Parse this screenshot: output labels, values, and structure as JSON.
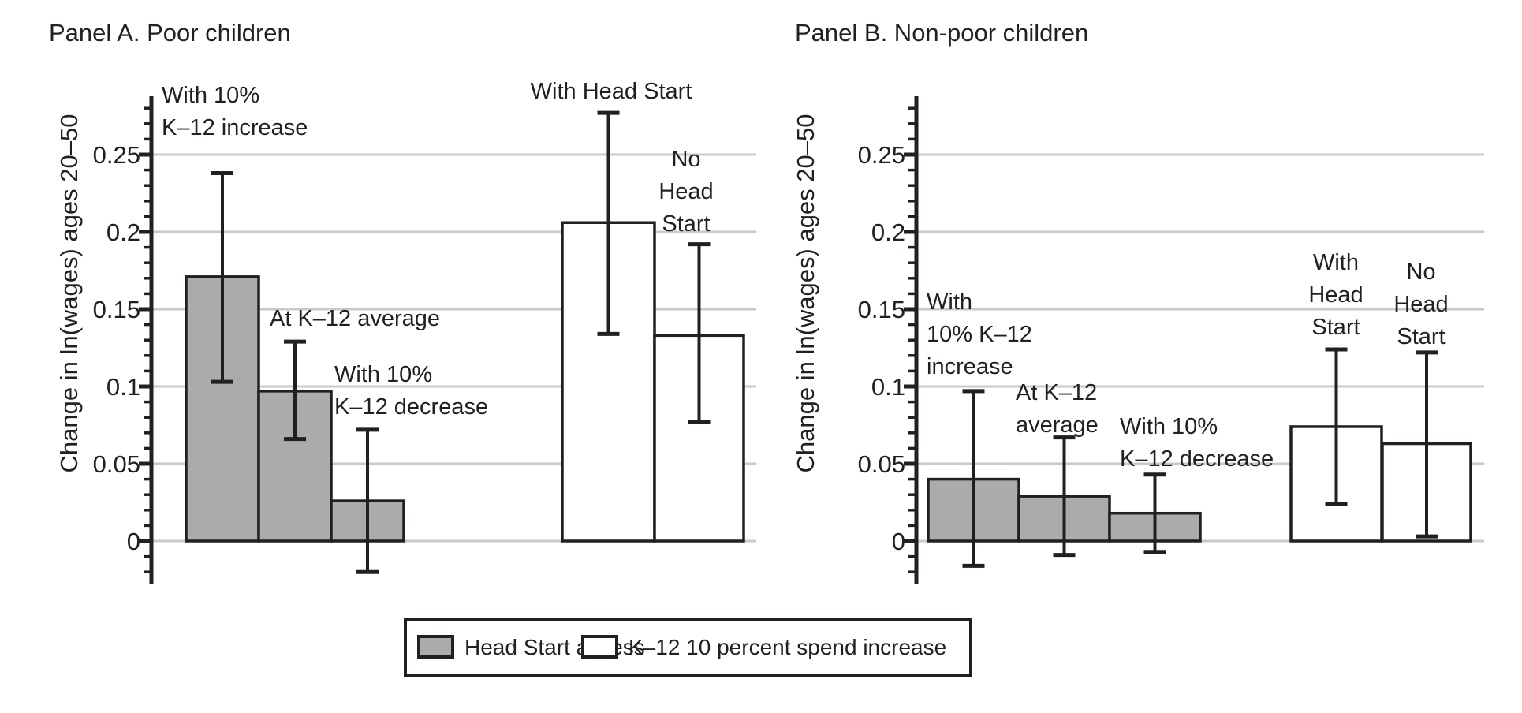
{
  "figure": {
    "background": "#ffffff",
    "text_color": "#231f20",
    "line_color": "#231f20",
    "grid_color": "#c8c9ca",
    "bar_gray": "#a9abac",
    "bar_white": "#ffffff"
  },
  "legend": {
    "items": [
      {
        "label": "Head Start access",
        "fill": "#a9abac"
      },
      {
        "label": "K–12 10 percent spend increase",
        "fill": "#ffffff"
      }
    ]
  },
  "chart_data": [
    {
      "type": "bar",
      "title": "Panel A. Poor children",
      "ylabel": "Change in ln(wages) ages 20–50",
      "ylim": [
        -0.028,
        0.288
      ],
      "grid": true,
      "legend_position": "bottom",
      "ytick_values": [
        0,
        0.05,
        0.1,
        0.15,
        0.2,
        0.25
      ],
      "yticks": [
        "0",
        "0.05",
        "0.1",
        "0.15",
        "0.2",
        "0.25"
      ],
      "minor_tick_step": 0.01,
      "bars": [
        {
          "label": "With 10% K–12 increase",
          "series": "Head Start access",
          "value": 0.171,
          "ci_low": 0.103,
          "ci_high": 0.238,
          "annotation_lines": [
            "With 10%",
            "K–12 increase"
          ]
        },
        {
          "label": "At K–12 average",
          "series": "Head Start access",
          "value": 0.097,
          "ci_low": 0.066,
          "ci_high": 0.129,
          "annotation_lines": [
            "At K–12 average"
          ]
        },
        {
          "label": "With 10% K–12 decrease",
          "series": "Head Start access",
          "value": 0.026,
          "ci_low": -0.02,
          "ci_high": 0.072,
          "annotation_lines": [
            "With 10%",
            "K–12 decrease"
          ]
        },
        {
          "label": "With Head Start",
          "series": "K–12 10 percent spend increase",
          "value": 0.206,
          "ci_low": 0.134,
          "ci_high": 0.277,
          "annotation_lines": [
            "With Head Start"
          ]
        },
        {
          "label": "No Head Start",
          "series": "K–12 10 percent spend increase",
          "value": 0.133,
          "ci_low": 0.077,
          "ci_high": 0.192,
          "annotation_lines": [
            "No",
            "Head",
            "Start"
          ]
        }
      ]
    },
    {
      "type": "bar",
      "title": "Panel B. Non-poor children",
      "ylabel": "Change in ln(wages) ages 20–50",
      "ylim": [
        -0.028,
        0.288
      ],
      "grid": true,
      "legend_position": "bottom",
      "ytick_values": [
        0,
        0.05,
        0.1,
        0.15,
        0.2,
        0.25
      ],
      "yticks": [
        "0",
        "0.05",
        "0.1",
        "0.15",
        "0.2",
        "0.25"
      ],
      "minor_tick_step": 0.01,
      "bars": [
        {
          "label": "With 10% K–12 increase",
          "series": "Head Start access",
          "value": 0.04,
          "ci_low": -0.016,
          "ci_high": 0.097,
          "annotation_lines": [
            "With",
            "10% K–12",
            "increase"
          ]
        },
        {
          "label": "At K–12 average",
          "series": "Head Start access",
          "value": 0.029,
          "ci_low": -0.009,
          "ci_high": 0.067,
          "annotation_lines": [
            "At K–12",
            "average"
          ]
        },
        {
          "label": "With 10% K–12 decrease",
          "series": "Head Start access",
          "value": 0.018,
          "ci_low": -0.007,
          "ci_high": 0.043,
          "annotation_lines": [
            "With 10%",
            "K–12 decrease"
          ]
        },
        {
          "label": "With Head Start",
          "series": "K–12 10 percent spend increase",
          "value": 0.074,
          "ci_low": 0.024,
          "ci_high": 0.124,
          "annotation_lines": [
            "With",
            "Head",
            "Start"
          ]
        },
        {
          "label": "No Head Start",
          "series": "K–12 10 percent spend increase",
          "value": 0.063,
          "ci_low": 0.003,
          "ci_high": 0.122,
          "annotation_lines": [
            "No",
            "Head",
            "Start"
          ]
        }
      ]
    }
  ]
}
